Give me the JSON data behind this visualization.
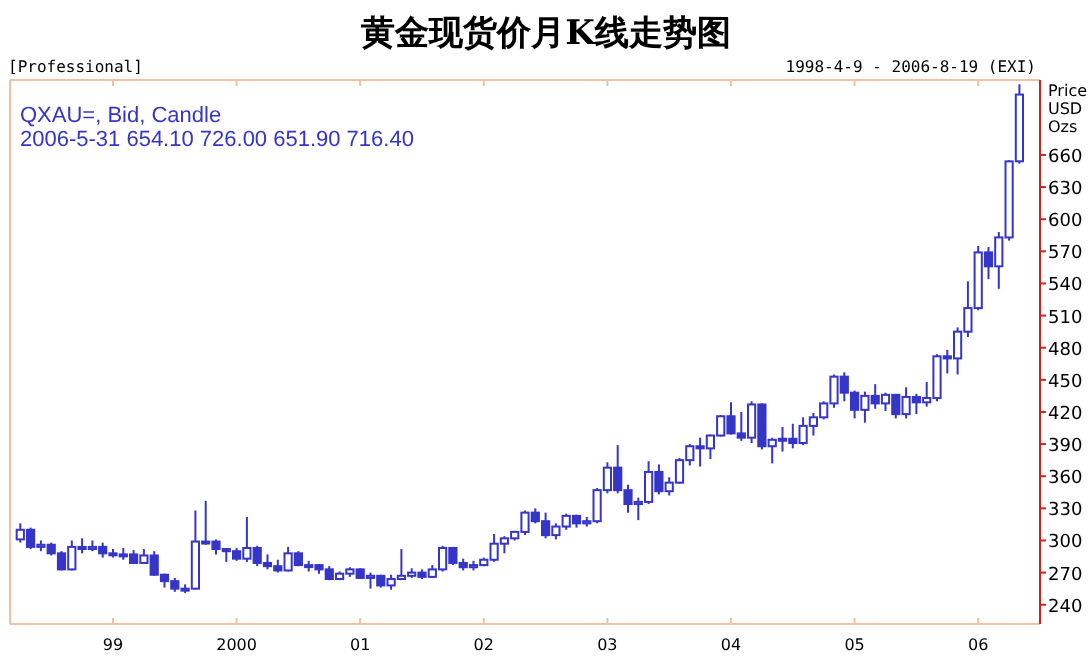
{
  "chart_data": {
    "type": "candlestick",
    "title": "黄金现货价月K线走势图",
    "ylabel": "Price USD Ozs",
    "annotations": [
      "[Professional]",
      "1998-4-9 - 2006-8-19 (EXI)",
      "QXAU=, Bid, Candle",
      "2006-5-31 654.10 726.00 651.90 716.40"
    ],
    "color": "#3535c8",
    "xlim": [
      "1998-03",
      "2006-07"
    ],
    "ylim": [
      222,
      730
    ],
    "xticks": [
      {
        "value": "1999-01",
        "label": "99"
      },
      {
        "value": "2000-01",
        "label": "2000"
      },
      {
        "value": "2001-01",
        "label": "01"
      },
      {
        "value": "2002-01",
        "label": "02"
      },
      {
        "value": "2003-01",
        "label": "03"
      },
      {
        "value": "2004-01",
        "label": "04"
      },
      {
        "value": "2005-01",
        "label": "05"
      },
      {
        "value": "2006-01",
        "label": "06"
      }
    ],
    "yticks": [
      240,
      270,
      300,
      330,
      360,
      390,
      420,
      450,
      480,
      510,
      540,
      570,
      600,
      630,
      660
    ],
    "x": [
      "1998-04",
      "1998-05",
      "1998-06",
      "1998-07",
      "1998-08",
      "1998-09",
      "1998-10",
      "1998-11",
      "1998-12",
      "1999-01",
      "1999-02",
      "1999-03",
      "1999-04",
      "1999-05",
      "1999-06",
      "1999-07",
      "1999-08",
      "1999-09",
      "1999-10",
      "1999-11",
      "1999-12",
      "2000-01",
      "2000-02",
      "2000-03",
      "2000-04",
      "2000-05",
      "2000-06",
      "2000-07",
      "2000-08",
      "2000-09",
      "2000-10",
      "2000-11",
      "2000-12",
      "2001-01",
      "2001-02",
      "2001-03",
      "2001-04",
      "2001-05",
      "2001-06",
      "2001-07",
      "2001-08",
      "2001-09",
      "2001-10",
      "2001-11",
      "2001-12",
      "2002-01",
      "2002-02",
      "2002-03",
      "2002-04",
      "2002-05",
      "2002-06",
      "2002-07",
      "2002-08",
      "2002-09",
      "2002-10",
      "2002-11",
      "2002-12",
      "2003-01",
      "2003-02",
      "2003-03",
      "2003-04",
      "2003-05",
      "2003-06",
      "2003-07",
      "2003-08",
      "2003-09",
      "2003-10",
      "2003-11",
      "2003-12",
      "2004-01",
      "2004-02",
      "2004-03",
      "2004-04",
      "2004-05",
      "2004-06",
      "2004-07",
      "2004-08",
      "2004-09",
      "2004-10",
      "2004-11",
      "2004-12",
      "2005-01",
      "2005-02",
      "2005-03",
      "2005-04",
      "2005-05",
      "2005-06",
      "2005-07",
      "2005-08",
      "2005-09",
      "2005-10",
      "2005-11",
      "2005-12",
      "2006-01",
      "2006-02",
      "2006-03",
      "2006-04",
      "2006-05"
    ],
    "ohlc": [
      [
        301,
        316,
        298,
        310
      ],
      [
        310,
        312,
        292,
        294
      ],
      [
        294,
        300,
        290,
        296
      ],
      [
        296,
        298,
        286,
        288
      ],
      [
        288,
        290,
        272,
        273
      ],
      [
        273,
        300,
        272,
        294
      ],
      [
        294,
        302,
        288,
        292
      ],
      [
        292,
        300,
        290,
        294
      ],
      [
        294,
        298,
        284,
        288
      ],
      [
        288,
        292,
        284,
        287
      ],
      [
        287,
        293,
        282,
        287
      ],
      [
        287,
        291,
        278,
        279
      ],
      [
        279,
        292,
        278,
        286
      ],
      [
        286,
        290,
        267,
        268
      ],
      [
        268,
        269,
        256,
        262
      ],
      [
        262,
        265,
        252,
        255
      ],
      [
        255,
        259,
        251,
        255
      ],
      [
        255,
        328,
        254,
        299
      ],
      [
        299,
        337,
        296,
        299
      ],
      [
        299,
        301,
        287,
        292
      ],
      [
        292,
        293,
        280,
        290
      ],
      [
        290,
        293,
        281,
        283
      ],
      [
        283,
        322,
        280,
        293
      ],
      [
        293,
        295,
        276,
        279
      ],
      [
        279,
        287,
        273,
        276
      ],
      [
        276,
        282,
        270,
        272
      ],
      [
        272,
        294,
        271,
        288
      ],
      [
        288,
        290,
        276,
        277
      ],
      [
        277,
        281,
        271,
        277
      ],
      [
        277,
        278,
        269,
        273
      ],
      [
        273,
        276,
        263,
        264
      ],
      [
        264,
        271,
        263,
        269
      ],
      [
        269,
        275,
        266,
        273
      ],
      [
        273,
        274,
        264,
        265
      ],
      [
        265,
        270,
        255,
        267
      ],
      [
        267,
        268,
        256,
        258
      ],
      [
        258,
        268,
        254,
        264
      ],
      [
        264,
        292,
        263,
        267
      ],
      [
        267,
        274,
        265,
        270
      ],
      [
        270,
        273,
        264,
        266
      ],
      [
        266,
        277,
        265,
        273
      ],
      [
        273,
        295,
        271,
        293
      ],
      [
        293,
        294,
        277,
        279
      ],
      [
        279,
        283,
        272,
        275
      ],
      [
        275,
        281,
        272,
        277
      ],
      [
        277,
        284,
        276,
        282
      ],
      [
        282,
        306,
        280,
        297
      ],
      [
        297,
        304,
        288,
        302
      ],
      [
        302,
        309,
        300,
        308
      ],
      [
        308,
        328,
        305,
        326
      ],
      [
        326,
        330,
        316,
        318
      ],
      [
        318,
        326,
        302,
        305
      ],
      [
        305,
        316,
        301,
        313
      ],
      [
        313,
        325,
        310,
        323
      ],
      [
        323,
        324,
        312,
        316
      ],
      [
        316,
        322,
        313,
        318
      ],
      [
        318,
        349,
        316,
        347
      ],
      [
        347,
        373,
        344,
        368
      ],
      [
        368,
        389,
        344,
        347
      ],
      [
        347,
        352,
        326,
        334
      ],
      [
        334,
        340,
        319,
        336
      ],
      [
        336,
        374,
        334,
        364
      ],
      [
        364,
        371,
        343,
        346
      ],
      [
        346,
        359,
        342,
        354
      ],
      [
        354,
        377,
        353,
        375
      ],
      [
        375,
        390,
        370,
        388
      ],
      [
        388,
        396,
        369,
        386
      ],
      [
        386,
        399,
        376,
        398
      ],
      [
        398,
        417,
        397,
        416
      ],
      [
        416,
        429,
        399,
        400
      ],
      [
        400,
        420,
        393,
        396
      ],
      [
        396,
        430,
        391,
        427
      ],
      [
        427,
        428,
        385,
        388
      ],
      [
        388,
        396,
        372,
        394
      ],
      [
        394,
        406,
        383,
        395
      ],
      [
        395,
        409,
        386,
        391
      ],
      [
        391,
        415,
        389,
        407
      ],
      [
        407,
        419,
        398,
        415
      ],
      [
        415,
        430,
        413,
        428
      ],
      [
        428,
        455,
        424,
        453
      ],
      [
        453,
        457,
        430,
        438
      ],
      [
        438,
        440,
        414,
        422
      ],
      [
        422,
        439,
        410,
        435
      ],
      [
        435,
        446,
        423,
        428
      ],
      [
        428,
        438,
        421,
        436
      ],
      [
        436,
        436,
        414,
        418
      ],
      [
        418,
        443,
        414,
        434
      ],
      [
        434,
        437,
        418,
        429
      ],
      [
        429,
        448,
        425,
        433
      ],
      [
        433,
        474,
        430,
        472
      ],
      [
        472,
        478,
        456,
        470
      ],
      [
        470,
        499,
        455,
        495
      ],
      [
        495,
        542,
        490,
        517
      ],
      [
        517,
        575,
        515,
        569
      ],
      [
        569,
        574,
        544,
        556
      ],
      [
        556,
        588,
        535,
        583
      ],
      [
        583,
        655,
        580,
        654
      ],
      [
        654.1,
        726,
        651.9,
        716.4
      ]
    ]
  }
}
